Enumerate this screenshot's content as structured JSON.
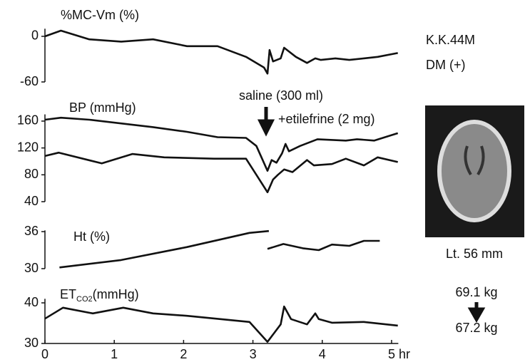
{
  "chart_data": [
    {
      "type": "line",
      "title": "%MC-Vm (%)",
      "xlim": [
        0,
        5.2
      ],
      "ylim": [
        -60,
        10
      ],
      "yticks": [
        0,
        -60
      ],
      "series": [
        {
          "color": "#111111",
          "x": [
            0,
            0.23,
            0.64,
            1.1,
            1.56,
            2.05,
            2.49,
            2.9,
            3.16,
            3.21,
            3.24,
            3.29,
            3.4,
            3.45,
            3.62,
            3.78,
            3.9,
            3.98,
            4.19,
            4.39,
            4.6,
            4.8,
            5.09
          ],
          "values": [
            0,
            7.5,
            -4,
            -7,
            -4,
            -13,
            -13,
            -27,
            -41,
            -49,
            -18,
            -33,
            -29,
            -15,
            -27,
            -35,
            -29,
            -31,
            -29,
            -31,
            -29,
            -27,
            -22
          ]
        }
      ]
    },
    {
      "type": "line",
      "title": "BP (mmHg)",
      "xlim": [
        0,
        5.2
      ],
      "ylim": [
        40,
        170
      ],
      "yticks": [
        160,
        120,
        80,
        40
      ],
      "annotations": [
        "saline (300 ml)",
        "+etilefrine (2 mg)"
      ],
      "series": [
        {
          "color": "#111111",
          "x": [
            0,
            0.23,
            0.64,
            1.56,
            2.05,
            2.49,
            2.9,
            3.05,
            3.21,
            3.27,
            3.34,
            3.42,
            3.47,
            3.52,
            3.68,
            3.93,
            4.34,
            4.5,
            4.75,
            5.09
          ],
          "values": [
            162,
            165,
            162,
            151,
            144,
            136,
            135,
            123,
            86,
            102,
            98,
            112,
            126,
            115,
            123,
            133,
            131,
            133,
            131,
            142
          ]
        },
        {
          "color": "#111111",
          "x": [
            0,
            0.2,
            0.82,
            1.26,
            1.72,
            2.44,
            2.9,
            3.05,
            3.21,
            3.29,
            3.36,
            3.45,
            3.57,
            3.78,
            3.88,
            4.14,
            4.34,
            4.6,
            4.8,
            5.09
          ],
          "values": [
            108,
            113,
            97,
            111,
            106,
            104,
            104,
            80,
            54,
            73,
            80,
            88,
            84,
            102,
            94,
            96,
            104,
            94,
            106,
            99
          ]
        }
      ]
    },
    {
      "type": "line",
      "title": "Ht (%)",
      "xlim": [
        0,
        5.2
      ],
      "ylim": [
        30,
        36.2
      ],
      "yticks": [
        36,
        30
      ],
      "series": [
        {
          "color": "#111111",
          "x": [
            0.21,
            1.1,
            2.05,
            2.95,
            3.23,
            null,
            3.21,
            3.44,
            3.72,
            3.95,
            4.14,
            4.39,
            4.6,
            4.83
          ],
          "values": [
            30.2,
            31.4,
            33.5,
            35.8,
            36.1,
            null,
            33.2,
            34,
            33.3,
            33,
            33.9,
            33.7,
            34.5,
            34.5
          ]
        }
      ]
    },
    {
      "type": "line",
      "title": "ET",
      "title_sub": "CO2",
      "title_unit": "(mmHg)",
      "xlim": [
        0,
        5.2
      ],
      "ylim": [
        30,
        41
      ],
      "yticks": [
        40,
        30
      ],
      "xticks": [
        0,
        1,
        2,
        3,
        4,
        5
      ],
      "xlabel": "hr",
      "series": [
        {
          "color": "#111111",
          "x": [
            0,
            0.26,
            0.69,
            1.13,
            1.56,
            2.05,
            2.95,
            3.21,
            3.4,
            3.45,
            3.55,
            3.78,
            3.9,
            3.95,
            4.14,
            4.6,
            5.09
          ],
          "values": [
            36.1,
            38.8,
            37.4,
            38.8,
            37.4,
            36.8,
            35.3,
            30.4,
            34.7,
            39.1,
            36,
            34.7,
            37.4,
            36,
            35.1,
            35.3,
            34.4
          ]
        }
      ]
    }
  ],
  "patient": {
    "id": "K.K.44M",
    "condition": "DM (+)"
  },
  "ct_label": "Lt. 56 mm",
  "weight": {
    "before": "69.1 kg",
    "after": "67.2 kg"
  }
}
